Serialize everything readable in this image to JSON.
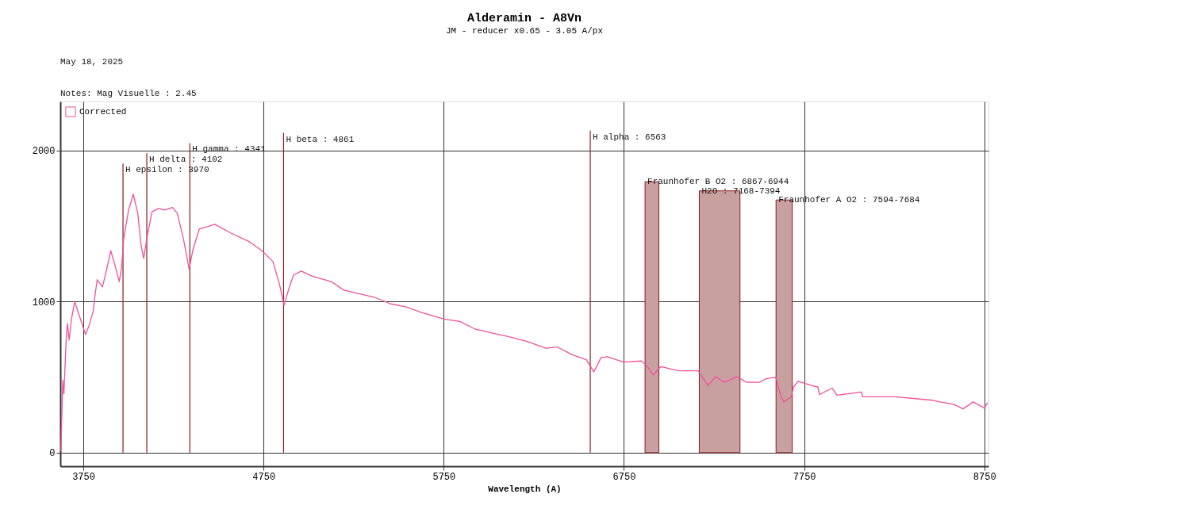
{
  "chart_data": {
    "type": "line",
    "title": "Alderamin - A8Vn",
    "subtitle": "JM - reducer x0.65 - 3.05 A/px",
    "xlabel": "Wavelength (A)",
    "annotations": [
      "May 18, 2025",
      "Notes: Mag Visuelle : 2.45"
    ],
    "x": [
      3625,
      3636,
      3642,
      3655,
      3662,
      3671,
      3684,
      3702,
      3762,
      3783,
      3805,
      3816,
      3827,
      3856,
      3878,
      3902,
      3926,
      3949,
      3961,
      3974,
      4001,
      4027,
      4052,
      4070,
      4085,
      4105,
      4131,
      4167,
      4201,
      4245,
      4271,
      4305,
      4337,
      4358,
      4393,
      4480,
      4567,
      4672,
      4741,
      4802,
      4837,
      4864,
      4889,
      4916,
      4959,
      5021,
      5125,
      5195,
      5369,
      5456,
      5543,
      5630,
      5752,
      5839,
      5926,
      6065,
      6102,
      6210,
      6317,
      6379,
      6461,
      6541,
      6583,
      6623,
      6657,
      6748,
      6847,
      6874,
      6913,
      6955,
      7054,
      7162,
      7216,
      7260,
      7305,
      7377,
      7431,
      7502,
      7539,
      7593,
      7619,
      7637,
      7678,
      7691,
      7717,
      7790,
      7826,
      7835,
      7906,
      7932,
      8068,
      8074,
      8255,
      8462,
      8504,
      8580,
      8632,
      8688,
      8750,
      8768
    ],
    "series": [
      {
        "name": "Corrected",
        "color": "#f0509a",
        "values": [
          10,
          480,
          390,
          760,
          855,
          745,
          885,
          1000,
          783,
          845,
          940,
          1055,
          1145,
          1097,
          1206,
          1337,
          1238,
          1133,
          1217,
          1417,
          1606,
          1711,
          1585,
          1375,
          1286,
          1437,
          1595,
          1617,
          1606,
          1623,
          1585,
          1417,
          1217,
          1343,
          1480,
          1512,
          1455,
          1396,
          1337,
          1265,
          1122,
          975,
          1080,
          1175,
          1202,
          1168,
          1133,
          1076,
          1027,
          985,
          965,
          927,
          884,
          869,
          817,
          779,
          770,
          737,
          692,
          700,
          650,
          615,
          535,
          630,
          635,
          600,
          607,
          580,
          515,
          570,
          542,
          542,
          445,
          503,
          466,
          503,
          466,
          466,
          490,
          500,
          380,
          336,
          370,
          435,
          472,
          445,
          435,
          385,
          427,
          380,
          401,
          370,
          370,
          347,
          336,
          320,
          290,
          336,
          295,
          332
        ]
      }
    ],
    "xlim": [
      3622,
      8773
    ],
    "xticks": [
      3750,
      4750,
      5750,
      6750,
      7750,
      8750
    ],
    "ylim": [
      -90,
      2325
    ],
    "yticks": [
      0,
      1000,
      2000
    ],
    "grid": true,
    "legend": "top left",
    "ref_lines": [
      {
        "axis": "x",
        "value": 3970,
        "label": "H epsilon : 3970",
        "color": "#8b1a1a"
      },
      {
        "axis": "x",
        "value": 4102,
        "label": "H delta : 4102",
        "color": "#8b1a1a"
      },
      {
        "axis": "x",
        "value": 4341,
        "label": "H gamma : 4341",
        "color": "#8b1a1a"
      },
      {
        "axis": "x",
        "value": 4861,
        "label": "H beta : 4861",
        "color": "#8b1a1a"
      },
      {
        "axis": "x",
        "value": 6563,
        "label": "H alpha : 6563",
        "color": "#8b1a1a"
      }
    ],
    "bands": [
      {
        "axis": "x",
        "from": 6867,
        "to": 6944,
        "label": "Fraunhofer B O2 : 6867-6944",
        "color": "#c9a0a0"
      },
      {
        "axis": "x",
        "from": 7168,
        "to": 7394,
        "label": "H2O : 7168-7394",
        "color": "#c9a0a0"
      },
      {
        "axis": "x",
        "from": 7594,
        "to": 7684,
        "label": "Fraunhofer A O2 : 7594-7684",
        "color": "#c9a0a0"
      }
    ]
  }
}
